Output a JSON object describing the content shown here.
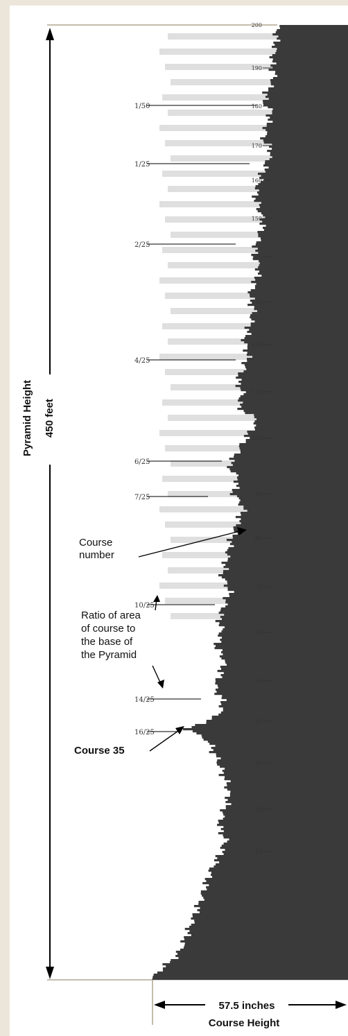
{
  "annotations": {
    "pyramid_height_label": "Pyramid Height",
    "pyramid_height_value": "450 feet",
    "course_number_line1": "Course",
    "course_number_line2": "number",
    "ratio_line1": "Ratio of area",
    "ratio_line2": "of course to",
    "ratio_line3": "the base of",
    "ratio_line4": "the Pyramid",
    "course35": "Course 35",
    "width_value": "57.5 inches",
    "width_label": "Course Height"
  },
  "course_ticks": [
    "200",
    "190",
    "180",
    "170",
    "160",
    "150",
    "140",
    "130",
    "120",
    "110",
    "100",
    "90",
    "80",
    "70",
    "60",
    "50",
    "40",
    "30",
    "20",
    "10"
  ],
  "ratio_marks": [
    "1/50",
    "1/25",
    "2/25",
    "4/25",
    "6/25",
    "7/25",
    "10/25",
    "14/25",
    "16/25"
  ],
  "colors": {
    "background": "#ece5da",
    "paper": "#ffffff",
    "bars": "#3a3a3a",
    "lines": "#8a7a5a",
    "text": "#111111"
  }
}
